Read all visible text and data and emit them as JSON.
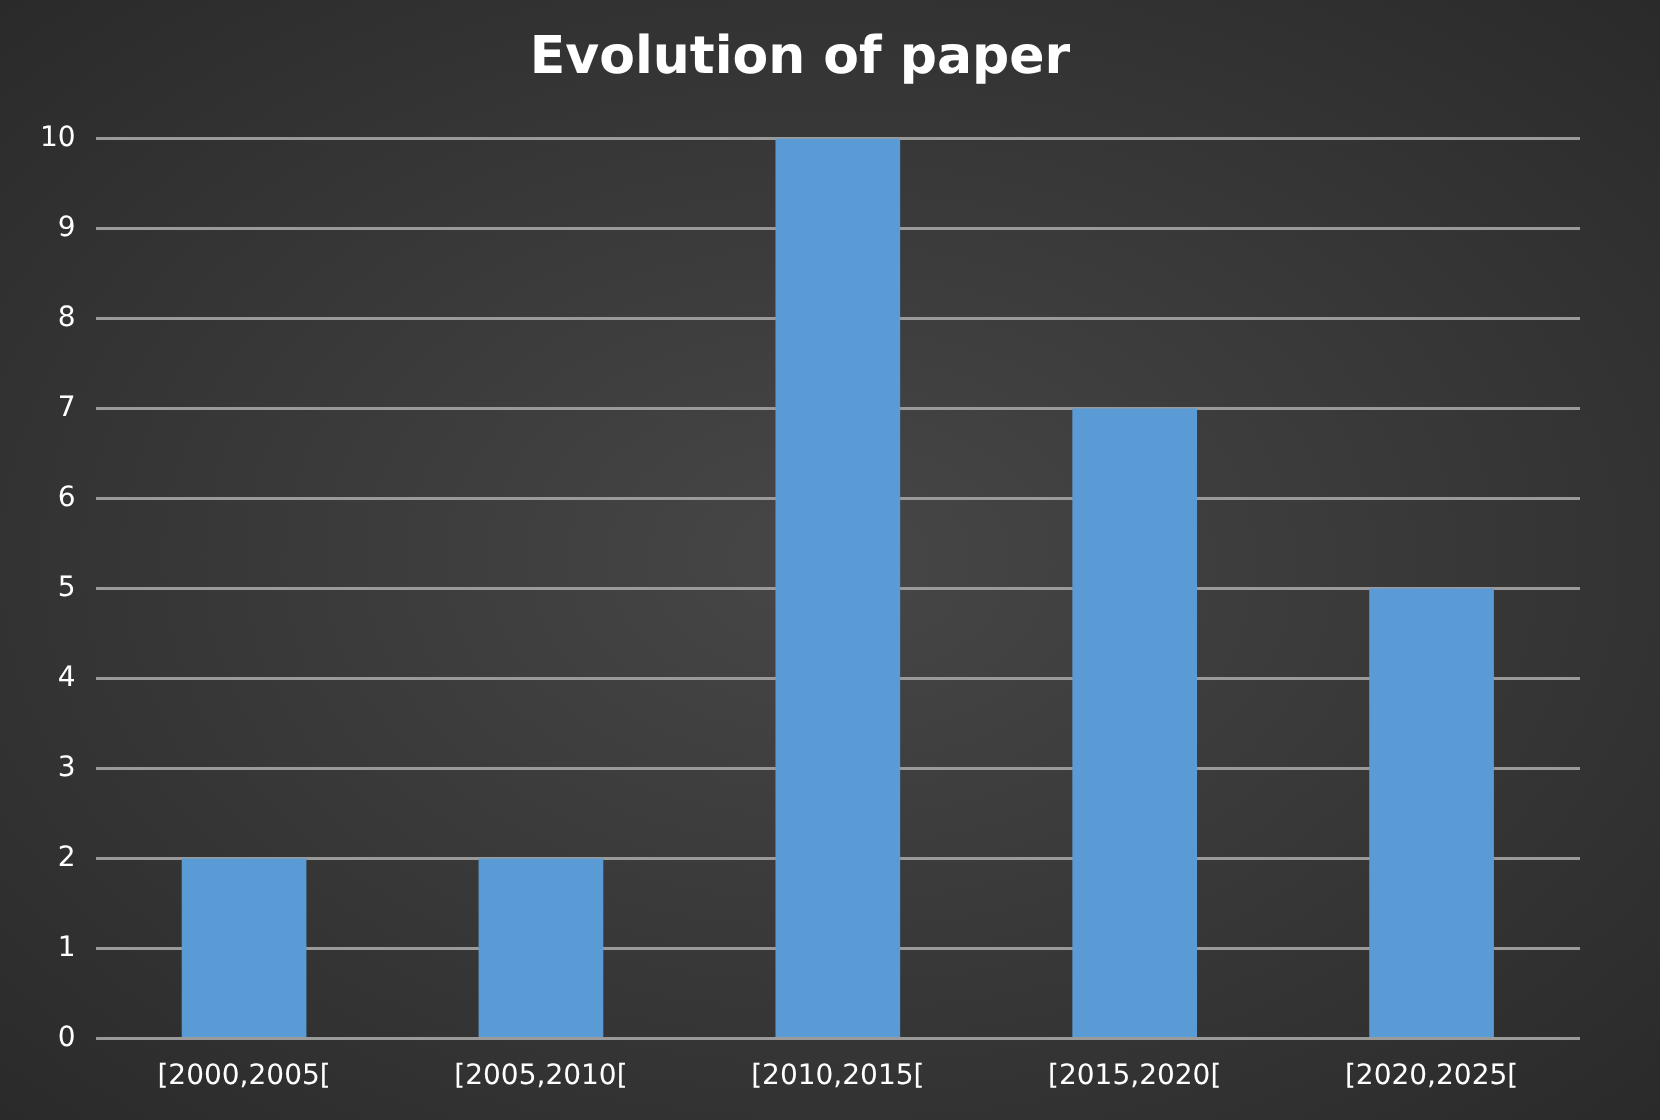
{
  "chart_data": {
    "type": "bar",
    "title": "Evolution of paper",
    "categories": [
      "[2000,2005[",
      "[2005,2010[",
      "[2010,2015[",
      "[2015,2020[",
      "[2020,2025["
    ],
    "values": [
      2,
      2,
      10,
      7,
      5
    ],
    "color": "#5b9bd5",
    "ylim": [
      0,
      10
    ],
    "yticks": [
      0,
      1,
      2,
      3,
      4,
      5,
      6,
      7,
      8,
      9,
      10
    ],
    "grid": "y",
    "legend": false
  }
}
